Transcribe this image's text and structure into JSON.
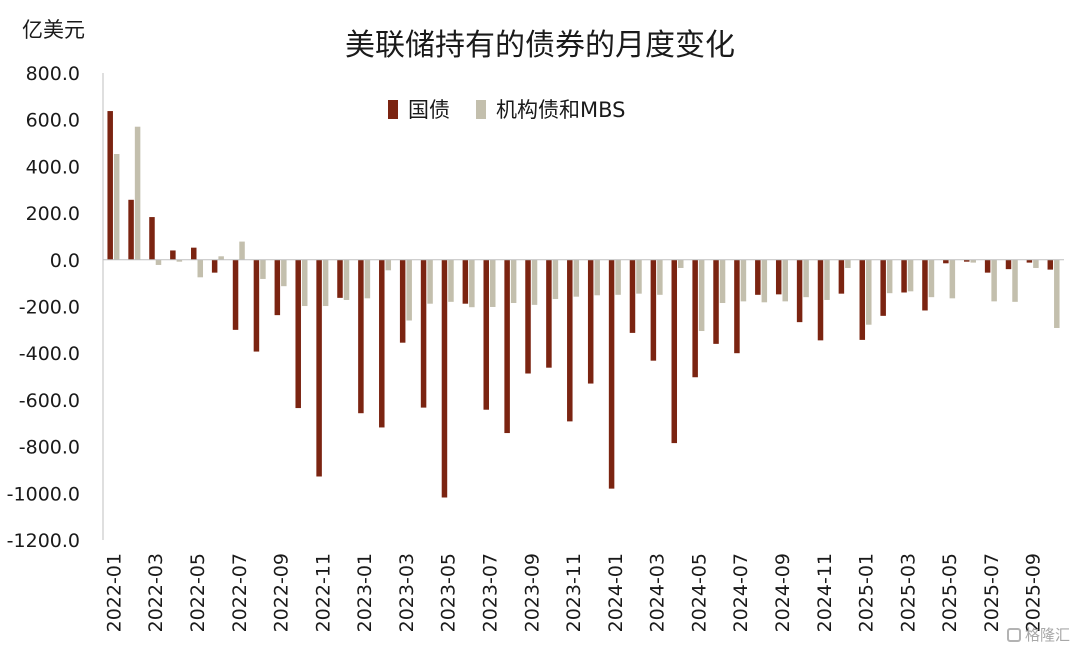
{
  "chart_data": {
    "type": "bar",
    "title": "美联储持有的债券的月度变化",
    "ylabel": "亿美元",
    "ylim": [
      -1200,
      800
    ],
    "ytick_values": [
      800,
      600,
      400,
      200,
      0,
      -200,
      -400,
      -600,
      -800,
      -1000,
      -1200
    ],
    "ytick_labels": [
      "800.0",
      "600.0",
      "400.0",
      "200.0",
      "0.0",
      "-200.0",
      "-400.0",
      "-600.0",
      "-800.0",
      "-1000.0",
      "-1200.0"
    ],
    "categories": [
      "2022-01",
      "2022-02",
      "2022-03",
      "2022-04",
      "2022-05",
      "2022-06",
      "2022-07",
      "2022-08",
      "2022-09",
      "2022-10",
      "2022-11",
      "2022-12",
      "2023-01",
      "2023-02",
      "2023-03",
      "2023-04",
      "2023-05",
      "2023-06",
      "2023-07",
      "2023-08",
      "2023-09",
      "2023-10",
      "2023-11",
      "2023-12",
      "2024-01",
      "2024-02",
      "2024-03",
      "2024-04",
      "2024-05",
      "2024-06",
      "2024-07",
      "2024-08",
      "2024-09",
      "2024-10",
      "2024-11",
      "2024-12",
      "2025-01",
      "2025-02",
      "2025-03",
      "2025-04",
      "2025-05",
      "2025-06",
      "2025-07",
      "2025-08",
      "2025-09",
      "2025-10"
    ],
    "xtick_labels": [
      "2022-01",
      "2022-03",
      "2022-05",
      "2022-07",
      "2022-09",
      "2022-11",
      "2023-01",
      "2023-03",
      "2023-05",
      "2023-07",
      "2023-09",
      "2023-11",
      "2024-01",
      "2024-03",
      "2024-05",
      "2024-07",
      "2024-09",
      "2024-11",
      "2025-01",
      "2025-03",
      "2025-05",
      "2025-07",
      "2025-09"
    ],
    "series": [
      {
        "name": "国债",
        "color": "#7b2411",
        "values": [
          637,
          257,
          183,
          40,
          52,
          -55,
          -300,
          -393,
          -237,
          -635,
          -928,
          -163,
          -657,
          -718,
          -355,
          -633,
          -1018,
          -188,
          -642,
          -742,
          -487,
          -462,
          -692,
          -530,
          -980,
          -313,
          -432,
          -785,
          -503,
          -360,
          -400,
          -150,
          -148,
          -267,
          -345,
          -145,
          -343,
          -240,
          -140,
          -217,
          -15,
          -8,
          -55,
          -40,
          -12,
          -42
        ]
      },
      {
        "name": "机构债和MBS",
        "color": "#c3bfad",
        "values": [
          453,
          570,
          -22,
          -8,
          -75,
          15,
          78,
          -82,
          -113,
          -198,
          -198,
          -172,
          -165,
          -45,
          -260,
          -188,
          -180,
          -203,
          -202,
          -185,
          -193,
          -168,
          -158,
          -152,
          -150,
          -145,
          -150,
          -35,
          -305,
          -185,
          -178,
          -182,
          -178,
          -160,
          -172,
          -35,
          -278,
          -143,
          -135,
          -160,
          -165,
          -12,
          -178,
          -180,
          -35,
          -292
        ]
      }
    ],
    "legend": "top-center"
  },
  "watermark": "格隆汇"
}
